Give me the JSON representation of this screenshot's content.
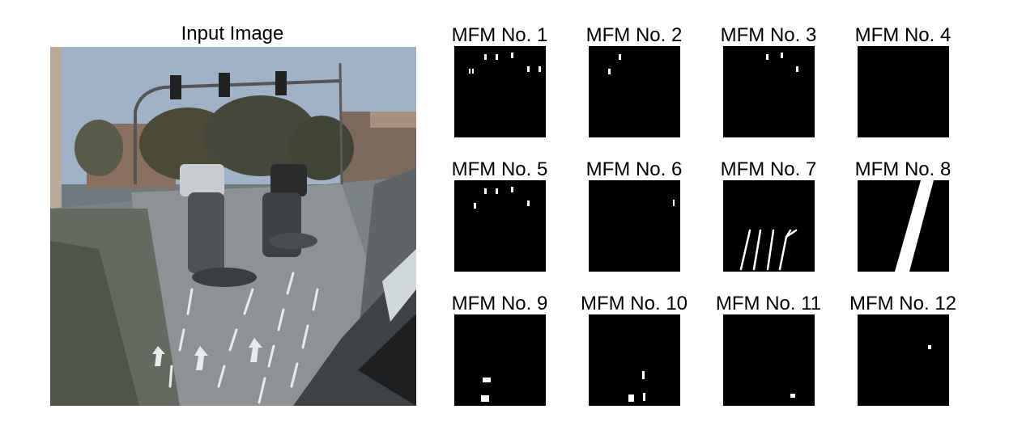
{
  "input": {
    "title": "Input Image"
  },
  "masks": [
    {
      "label": "MFM No. 1"
    },
    {
      "label": "MFM No. 2"
    },
    {
      "label": "MFM No. 3"
    },
    {
      "label": "MFM No. 4"
    },
    {
      "label": "MFM No. 5"
    },
    {
      "label": "MFM No. 6"
    },
    {
      "label": "MFM No. 7"
    },
    {
      "label": "MFM No. 8"
    },
    {
      "label": "MFM No. 9"
    },
    {
      "label": "MFM No. 10"
    },
    {
      "label": "MFM No. 11"
    },
    {
      "label": "MFM No. 12"
    }
  ],
  "colors": {
    "mask_background": "#000000",
    "mask_foreground": "#ffffff"
  }
}
